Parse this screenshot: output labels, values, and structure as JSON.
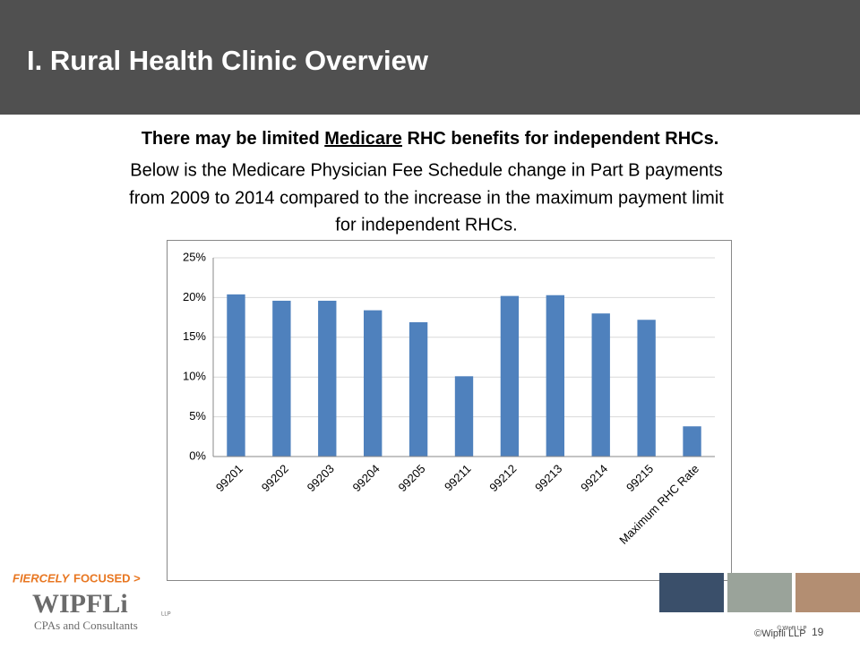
{
  "header": {
    "title": "I. Rural Health Clinic Overview"
  },
  "body": {
    "subtitle_parts": [
      "There may be limited ",
      "Medicare",
      " RHC benefits for independent RHCs."
    ],
    "lines": [
      "Below is the Medicare Physician Fee Schedule change in Part B payments",
      "from 2009 to 2014 compared to the increase in the maximum payment limit",
      "for independent RHCs."
    ]
  },
  "chart_data": {
    "type": "bar",
    "categories": [
      "99201",
      "99202",
      "99203",
      "99204",
      "99205",
      "99211",
      "99212",
      "99213",
      "99214",
      "99215",
      "Maximum RHC Rate"
    ],
    "values": [
      20.4,
      19.6,
      19.6,
      18.4,
      16.9,
      10.1,
      20.2,
      20.3,
      18.0,
      17.2,
      3.8
    ],
    "color": "#4f81bd",
    "ylim": [
      0,
      25
    ],
    "yticks": [
      {
        "value": 0,
        "label": "0%"
      },
      {
        "value": 5,
        "label": "5%"
      },
      {
        "value": 10,
        "label": "10%"
      },
      {
        "value": 15,
        "label": "15%"
      },
      {
        "value": 20,
        "label": "20%"
      },
      {
        "value": 25,
        "label": "25%"
      }
    ],
    "grid": true
  },
  "footer": {
    "tagline_1": "FIERCELY",
    "tagline_2": "FOCUSED >",
    "logo": "WIPFLi",
    "logo_sub": "LLP",
    "logo_tagline": "CPAs and Consultants",
    "watermark": "© Wipfli LLP",
    "copyright": "©Wipfli LLP",
    "page": "19"
  }
}
